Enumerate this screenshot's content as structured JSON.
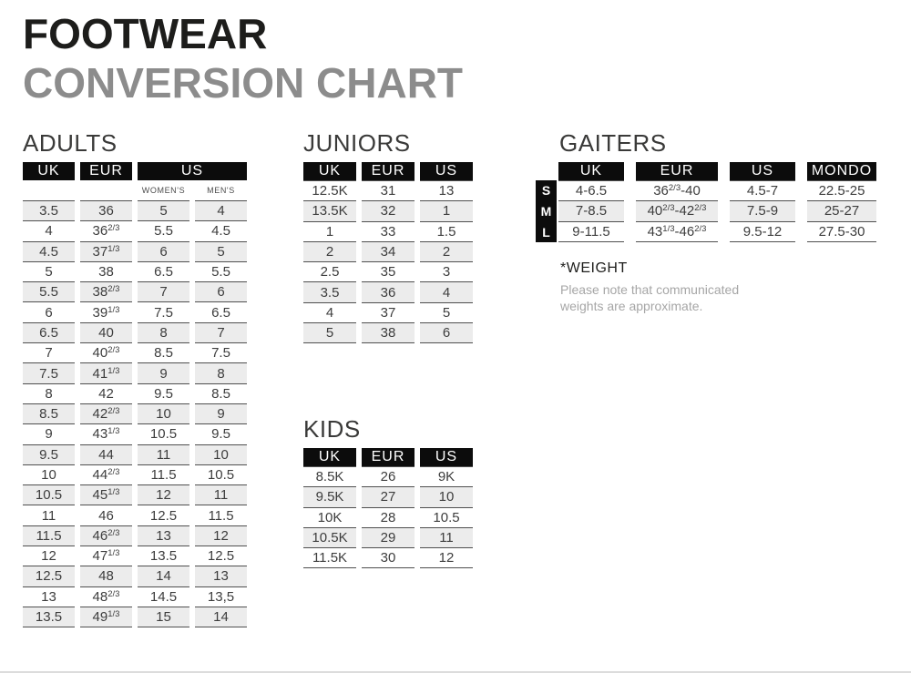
{
  "title": {
    "line1": "FOOTWEAR",
    "line2": "CONVERSION CHART"
  },
  "colors": {
    "header_bg": "#0c0c0c",
    "row_alt": "#ececec",
    "line": "#4f4f4f",
    "cell_text": "#3d3d3d",
    "title_black": "#1d1d1b",
    "title_gray": "#8c8c8c",
    "note_gray": "#a6a6a6"
  },
  "tables": {
    "adults": {
      "heading": "ADULTS",
      "headers": [
        "UK",
        "EUR",
        "US"
      ],
      "subheaders": [
        "WOMEN'S",
        "MEN'S"
      ],
      "rows": [
        [
          "3.5",
          "36",
          "5",
          "4"
        ],
        [
          "4",
          "36⅔",
          "5.5",
          "4.5"
        ],
        [
          "4.5",
          "37⅓",
          "6",
          "5"
        ],
        [
          "5",
          "38",
          "6.5",
          "5.5"
        ],
        [
          "5.5",
          "38⅔",
          "7",
          "6"
        ],
        [
          "6",
          "39⅓",
          "7.5",
          "6.5"
        ],
        [
          "6.5",
          "40",
          "8",
          "7"
        ],
        [
          "7",
          "40⅔",
          "8.5",
          "7.5"
        ],
        [
          "7.5",
          "41⅓",
          "9",
          "8"
        ],
        [
          "8",
          "42",
          "9.5",
          "8.5"
        ],
        [
          "8.5",
          "42⅔",
          "10",
          "9"
        ],
        [
          "9",
          "43⅓",
          "10.5",
          "9.5"
        ],
        [
          "9.5",
          "44",
          "11",
          "10"
        ],
        [
          "10",
          "44⅔",
          "11.5",
          "10.5"
        ],
        [
          "10.5",
          "45⅓",
          "12",
          "11"
        ],
        [
          "11",
          "46",
          "12.5",
          "11.5"
        ],
        [
          "11.5",
          "46⅔",
          "13",
          "12"
        ],
        [
          "12",
          "47⅓",
          "13.5",
          "12.5"
        ],
        [
          "12.5",
          "48",
          "14",
          "13"
        ],
        [
          "13",
          "48⅔",
          "14.5",
          "13,5"
        ],
        [
          "13.5",
          "49⅓",
          "15",
          "14"
        ]
      ]
    },
    "juniors": {
      "heading": "JUNIORS",
      "headers": [
        "UK",
        "EUR",
        "US"
      ],
      "rows": [
        [
          "12.5K",
          "31",
          "13"
        ],
        [
          "13.5K",
          "32",
          "1"
        ],
        [
          "1",
          "33",
          "1.5"
        ],
        [
          "2",
          "34",
          "2"
        ],
        [
          "2.5",
          "35",
          "3"
        ],
        [
          "3.5",
          "36",
          "4"
        ],
        [
          "4",
          "37",
          "5"
        ],
        [
          "5",
          "38",
          "6"
        ]
      ]
    },
    "kids": {
      "heading": "KIDS",
      "headers": [
        "UK",
        "EUR",
        "US"
      ],
      "rows": [
        [
          "8.5K",
          "26",
          "9K"
        ],
        [
          "9.5K",
          "27",
          "10"
        ],
        [
          "10K",
          "28",
          "10.5"
        ],
        [
          "10.5K",
          "29",
          "11"
        ],
        [
          "11.5K",
          "30",
          "12"
        ]
      ]
    },
    "gaiters": {
      "heading": "GAITERS",
      "headers": [
        "UK",
        "EUR",
        "US",
        "MONDO"
      ],
      "size_labels": [
        "S",
        "M",
        "L"
      ],
      "rows": [
        [
          "4-6.5",
          "36⅔-40",
          "4.5-7",
          "22.5-25"
        ],
        [
          "7-8.5",
          "40⅔-42⅔",
          "7.5-9",
          "25-27"
        ],
        [
          "9-11.5",
          "43⅓-46⅔",
          "9.5-12",
          "27.5-30"
        ]
      ]
    }
  },
  "note": {
    "title": "*WEIGHT",
    "body": "Please note that communicated weights are approximate."
  }
}
